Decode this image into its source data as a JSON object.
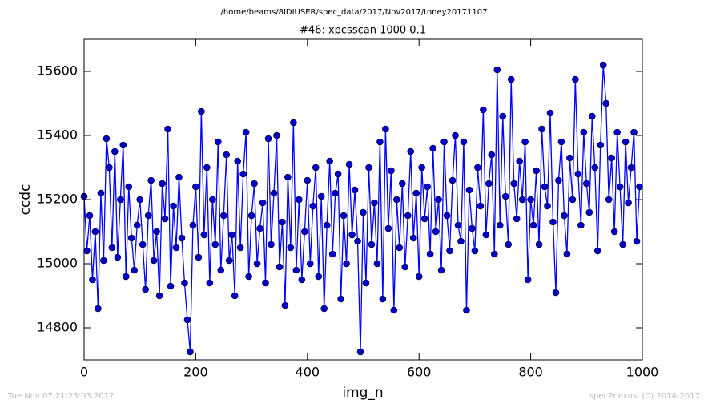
{
  "chart_data": {
    "type": "line",
    "title": "/home/beams/8IDIUSER/spec_data/2017/Nov2017/toney20171107",
    "subtitle": "#46: xpcsscan 1000 0.1",
    "xlabel": "img_n",
    "ylabel": "ccdc",
    "footer_left": "Tue Nov 07 21:23:03 2017",
    "footer_right": "spec2nexus, (C) 2014-2017",
    "xlim": [
      0,
      1000
    ],
    "ylim": [
      14700,
      15700
    ],
    "xticks": [
      0,
      200,
      400,
      600,
      800,
      1000
    ],
    "yticks": [
      14800,
      15000,
      15200,
      15400,
      15600
    ],
    "grid": false,
    "x": [
      0,
      5,
      10,
      15,
      20,
      25,
      30,
      35,
      40,
      45,
      50,
      55,
      60,
      65,
      70,
      75,
      80,
      85,
      90,
      95,
      100,
      105,
      110,
      115,
      120,
      125,
      130,
      135,
      140,
      145,
      150,
      155,
      160,
      165,
      170,
      175,
      180,
      185,
      190,
      195,
      200,
      205,
      210,
      215,
      220,
      225,
      230,
      235,
      240,
      245,
      250,
      255,
      260,
      265,
      270,
      275,
      280,
      285,
      290,
      295,
      300,
      305,
      310,
      315,
      320,
      325,
      330,
      335,
      340,
      345,
      350,
      355,
      360,
      365,
      370,
      375,
      380,
      385,
      390,
      395,
      400,
      405,
      410,
      415,
      420,
      425,
      430,
      435,
      440,
      445,
      450,
      455,
      460,
      465,
      470,
      475,
      480,
      485,
      490,
      495,
      500,
      505,
      510,
      515,
      520,
      525,
      530,
      535,
      540,
      545,
      550,
      555,
      560,
      565,
      570,
      575,
      580,
      585,
      590,
      595,
      600,
      605,
      610,
      615,
      620,
      625,
      630,
      635,
      640,
      645,
      650,
      655,
      660,
      665,
      670,
      675,
      680,
      685,
      690,
      695,
      700,
      705,
      710,
      715,
      720,
      725,
      730,
      735,
      740,
      745,
      750,
      755,
      760,
      765,
      770,
      775,
      780,
      785,
      790,
      795,
      800,
      805,
      810,
      815,
      820,
      825,
      830,
      835,
      840,
      845,
      850,
      855,
      860,
      865,
      870,
      875,
      880,
      885,
      890,
      895,
      900,
      905,
      910,
      915,
      920,
      925,
      930,
      935,
      940,
      945,
      950,
      955,
      960,
      965,
      970,
      975,
      980,
      985,
      990,
      995
    ],
    "series": [
      {
        "name": "ccdc",
        "color": "#0000ff",
        "marker_color": "#0000cc",
        "values": [
          15210,
          15040,
          15150,
          14950,
          15100,
          14860,
          15220,
          15010,
          15390,
          15300,
          15050,
          15350,
          15020,
          15200,
          15370,
          14960,
          15240,
          15080,
          14980,
          15120,
          15200,
          15060,
          14920,
          15150,
          15260,
          15010,
          15100,
          14900,
          15250,
          15140,
          15420,
          14930,
          15180,
          15050,
          15270,
          15080,
          14940,
          14825,
          14725,
          15120,
          15240,
          15020,
          15475,
          15090,
          15300,
          14940,
          15200,
          15060,
          15380,
          14980,
          15150,
          15340,
          15010,
          15090,
          14900,
          15320,
          15050,
          15280,
          15410,
          14960,
          15150,
          15250,
          15000,
          15110,
          15190,
          14940,
          15390,
          15060,
          15220,
          15400,
          14990,
          15130,
          14870,
          15270,
          15050,
          15440,
          14980,
          15200,
          14950,
          15100,
          15260,
          15000,
          15180,
          15300,
          14960,
          15210,
          14860,
          15120,
          15320,
          15030,
          15220,
          15280,
          14890,
          15150,
          15000,
          15310,
          15090,
          15230,
          15070,
          14725,
          15160,
          14940,
          15300,
          15060,
          15190,
          15000,
          15380,
          14890,
          15420,
          15110,
          15290,
          14855,
          15200,
          15050,
          15250,
          14990,
          15150,
          15350,
          15080,
          15220,
          14960,
          15300,
          15140,
          15240,
          15030,
          15360,
          15100,
          15200,
          14980,
          15380,
          15150,
          15040,
          15260,
          15400,
          15120,
          15070,
          15380,
          14855,
          15230,
          15110,
          15040,
          15300,
          15180,
          15480,
          15090,
          15250,
          15340,
          15030,
          15605,
          15120,
          15460,
          15210,
          15060,
          15575,
          15250,
          15140,
          15320,
          15200,
          15380,
          14950,
          15200,
          15120,
          15290,
          15060,
          15420,
          15240,
          15180,
          15470,
          15130,
          14910,
          15260,
          15380,
          15150,
          15030,
          15330,
          15200,
          15575,
          15280,
          15120,
          15410,
          15250,
          15160,
          15460,
          15300,
          15040,
          15370,
          15620,
          15500,
          15200,
          15330,
          15100,
          15410,
          15240,
          15060,
          15380,
          15190,
          15300,
          15410,
          15070,
          15240
        ]
      }
    ]
  }
}
